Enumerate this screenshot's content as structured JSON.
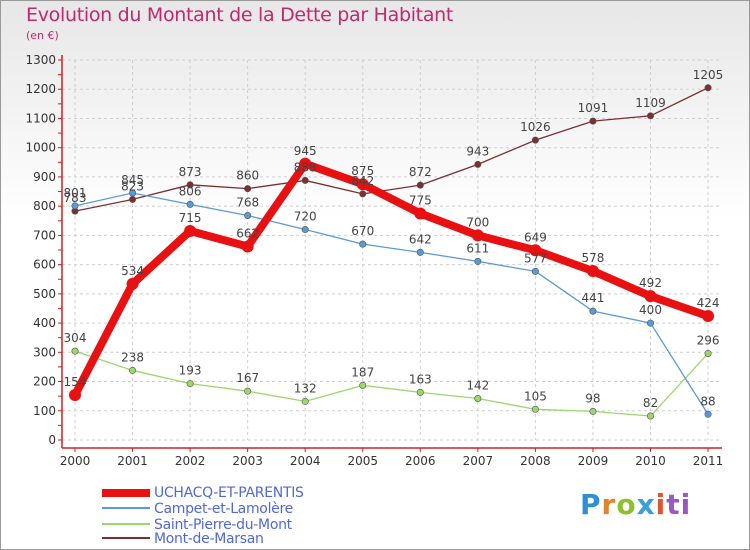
{
  "chart_data": {
    "type": "line",
    "title": "Evolution du Montant de la Dette par Habitant",
    "subtitle": "(en €)",
    "x": [
      "2000",
      "2001",
      "2002",
      "2003",
      "2004",
      "2005",
      "2006",
      "2007",
      "2008",
      "2009",
      "2010",
      "2011"
    ],
    "ylim": [
      0,
      1300
    ],
    "yticks": [
      0,
      100,
      200,
      300,
      400,
      500,
      600,
      700,
      800,
      900,
      1000,
      1100,
      1200,
      1300
    ],
    "grid": true,
    "legend_position": "bottom-left",
    "series": [
      {
        "name": "UCHACQ-ET-PARENTIS",
        "color": "#e81010",
        "values": [
          154,
          534,
          715,
          662,
          945,
          875,
          775,
          700,
          649,
          578,
          492,
          424
        ]
      },
      {
        "name": "Campet-et-Lamolère",
        "color": "#5b9bd5",
        "values": [
          801,
          845,
          806,
          768,
          720,
          670,
          642,
          611,
          577,
          441,
          400,
          88
        ]
      },
      {
        "name": "Saint-Pierre-du-Mont",
        "color": "#9bd86b",
        "values": [
          304,
          238,
          193,
          167,
          132,
          187,
          163,
          142,
          105,
          98,
          82,
          296
        ]
      },
      {
        "name": "Mont-de-Marsan",
        "color": "#7a3030",
        "values": [
          783,
          823,
          873,
          860,
          888,
          842,
          872,
          943,
          1026,
          1091,
          1109,
          1205
        ]
      }
    ]
  },
  "logo_letters": [
    "P",
    "r",
    "o",
    "x",
    "i",
    "ti"
  ]
}
